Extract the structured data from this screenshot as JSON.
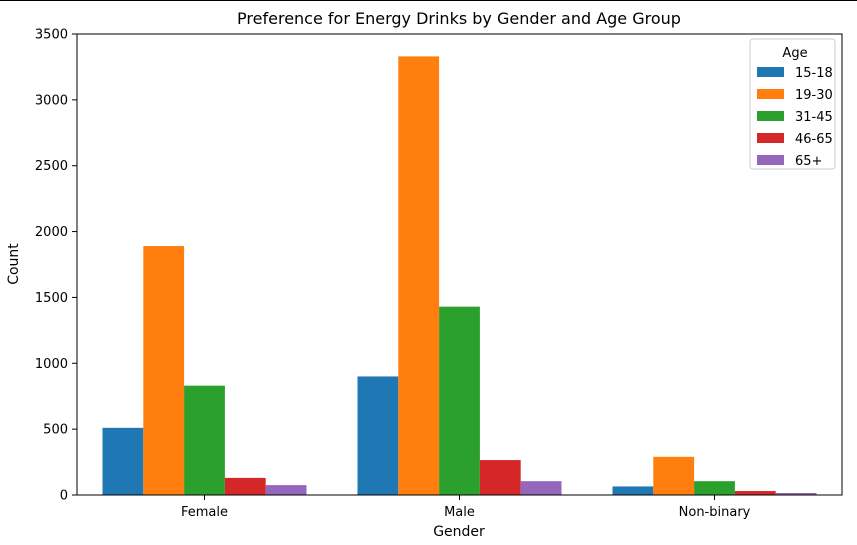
{
  "chart_data": {
    "type": "bar",
    "title": "Preference for Energy Drinks by Gender and Age Group",
    "xlabel": "Gender",
    "ylabel": "Count",
    "categories": [
      "Female",
      "Male",
      "Non-binary"
    ],
    "ylim": [
      0,
      3500
    ],
    "yticks": [
      0,
      500,
      1000,
      1500,
      2000,
      2500,
      3000,
      3500
    ],
    "legend": {
      "title": "Age",
      "placement": "top-right"
    },
    "grid": false,
    "series": [
      {
        "name": "15-18",
        "color": "#1f77b4",
        "values": [
          510,
          900,
          65
        ]
      },
      {
        "name": "19-30",
        "color": "#ff7f0e",
        "values": [
          1890,
          3330,
          290
        ]
      },
      {
        "name": "31-45",
        "color": "#2ca02c",
        "values": [
          830,
          1430,
          105
        ]
      },
      {
        "name": "46-65",
        "color": "#d62728",
        "values": [
          130,
          265,
          30
        ]
      },
      {
        "name": "65+",
        "color": "#9467bd",
        "values": [
          75,
          105,
          15
        ]
      }
    ]
  }
}
